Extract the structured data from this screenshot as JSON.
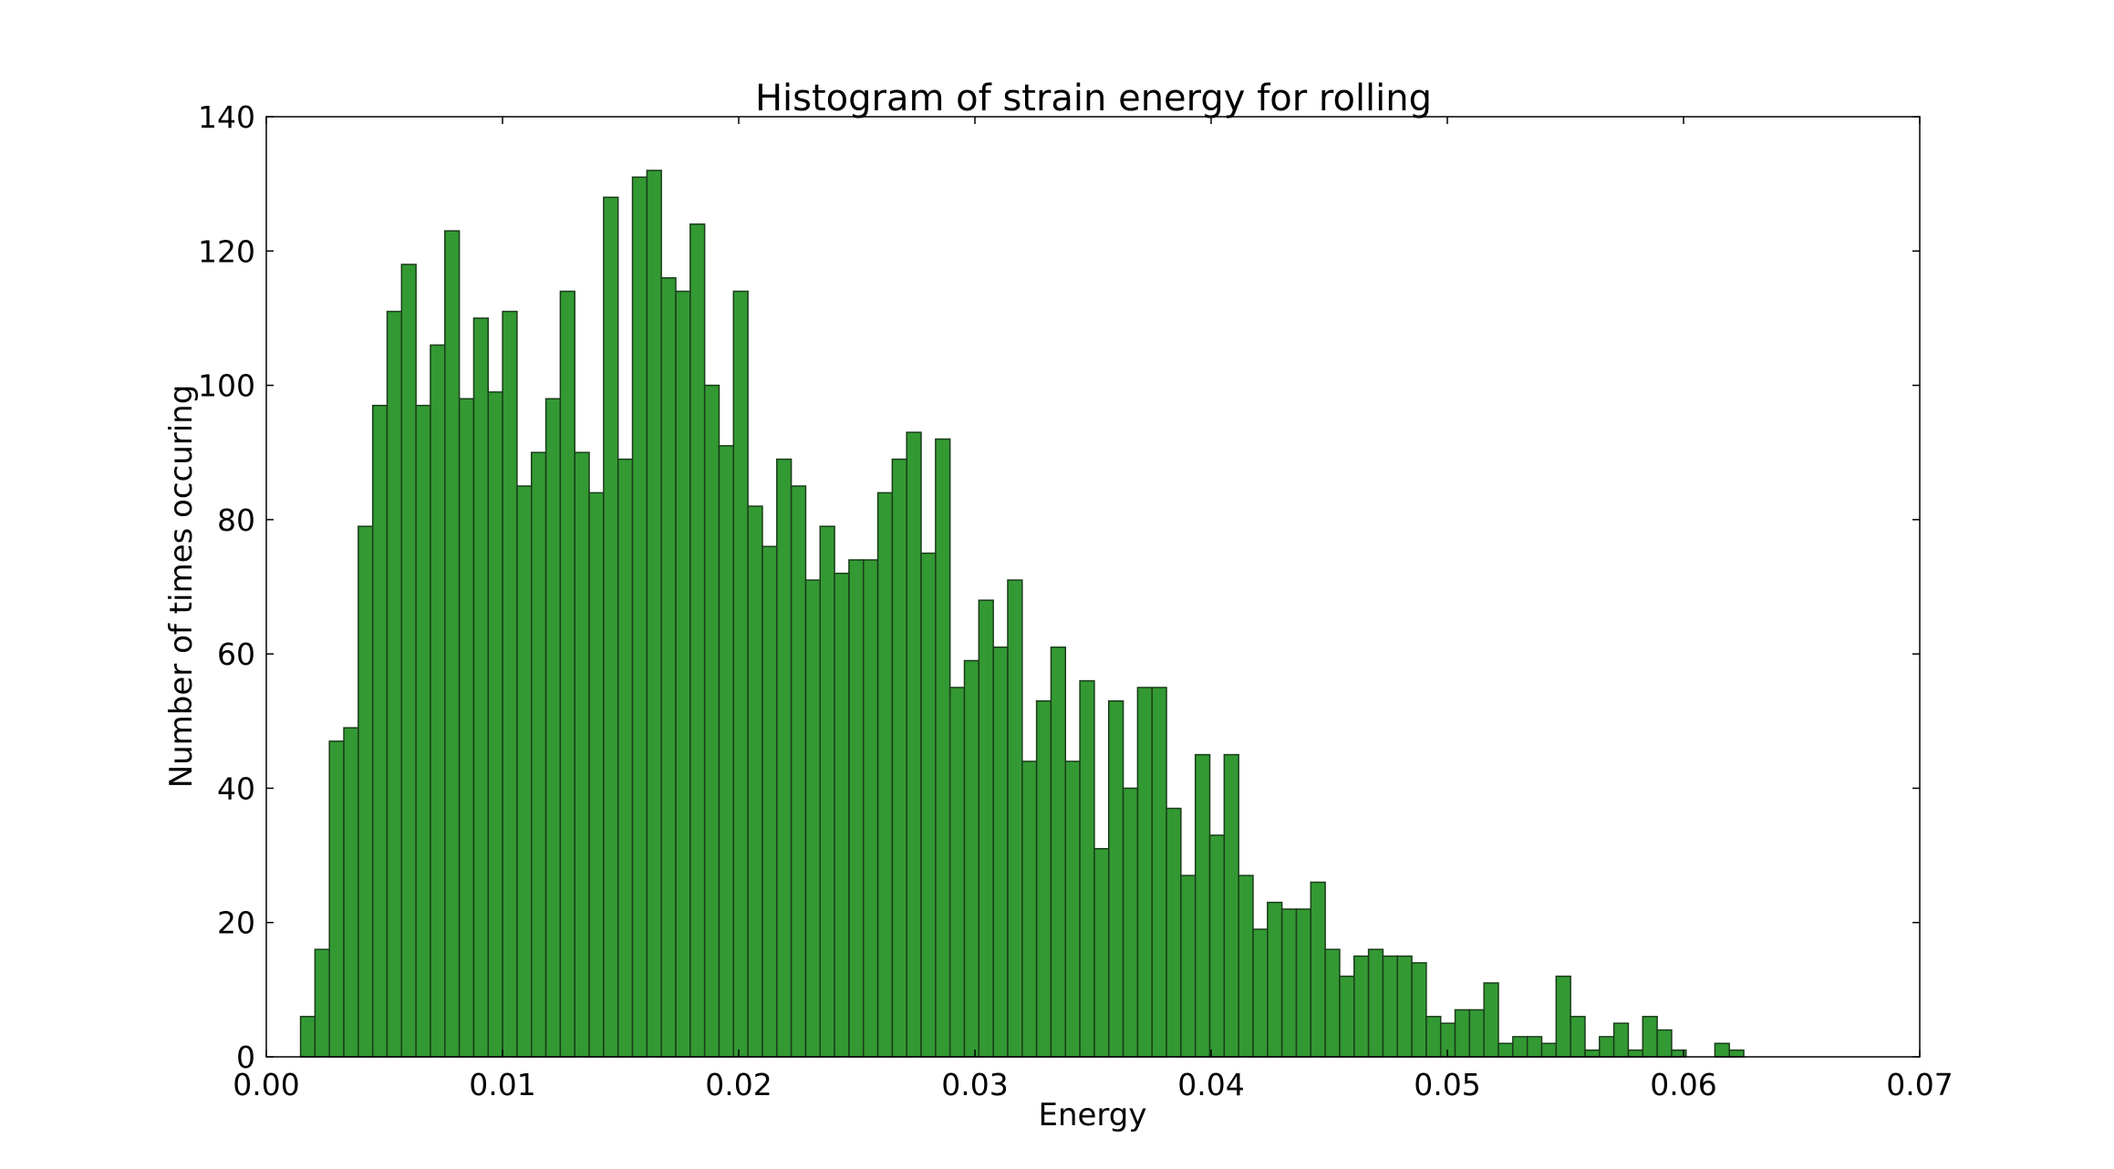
{
  "chart_data": {
    "type": "bar",
    "title": "Histogram of strain energy for rolling",
    "xlabel": "Energy",
    "ylabel": "Number of times occuring",
    "xlim": [
      0.0,
      0.07
    ],
    "ylim": [
      0,
      140
    ],
    "xticks": [
      "0.00",
      "0.01",
      "0.02",
      "0.03",
      "0.04",
      "0.05",
      "0.06",
      "0.07"
    ],
    "yticks": [
      "0",
      "20",
      "40",
      "60",
      "80",
      "100",
      "120",
      "140"
    ],
    "grid": false,
    "bin_start": 0.00145,
    "bin_width": 0.000611,
    "bar_color": "#339933",
    "edge_color": "#1a3d1a",
    "values": [
      6,
      16,
      47,
      49,
      79,
      97,
      111,
      118,
      97,
      106,
      123,
      98,
      110,
      99,
      111,
      85,
      90,
      98,
      114,
      90,
      84,
      128,
      89,
      131,
      132,
      116,
      114,
      124,
      100,
      91,
      114,
      82,
      76,
      89,
      85,
      71,
      79,
      72,
      74,
      74,
      84,
      89,
      93,
      75,
      92,
      55,
      59,
      68,
      61,
      71,
      44,
      53,
      61,
      44,
      56,
      31,
      53,
      40,
      55,
      55,
      37,
      27,
      45,
      33,
      45,
      27,
      19,
      23,
      22,
      22,
      26,
      16,
      12,
      15,
      16,
      15,
      15,
      14,
      6,
      5,
      7,
      7,
      11,
      2,
      3,
      3,
      2,
      12,
      6,
      1,
      3,
      5,
      1,
      6,
      4,
      1,
      0,
      0,
      2,
      1
    ]
  }
}
